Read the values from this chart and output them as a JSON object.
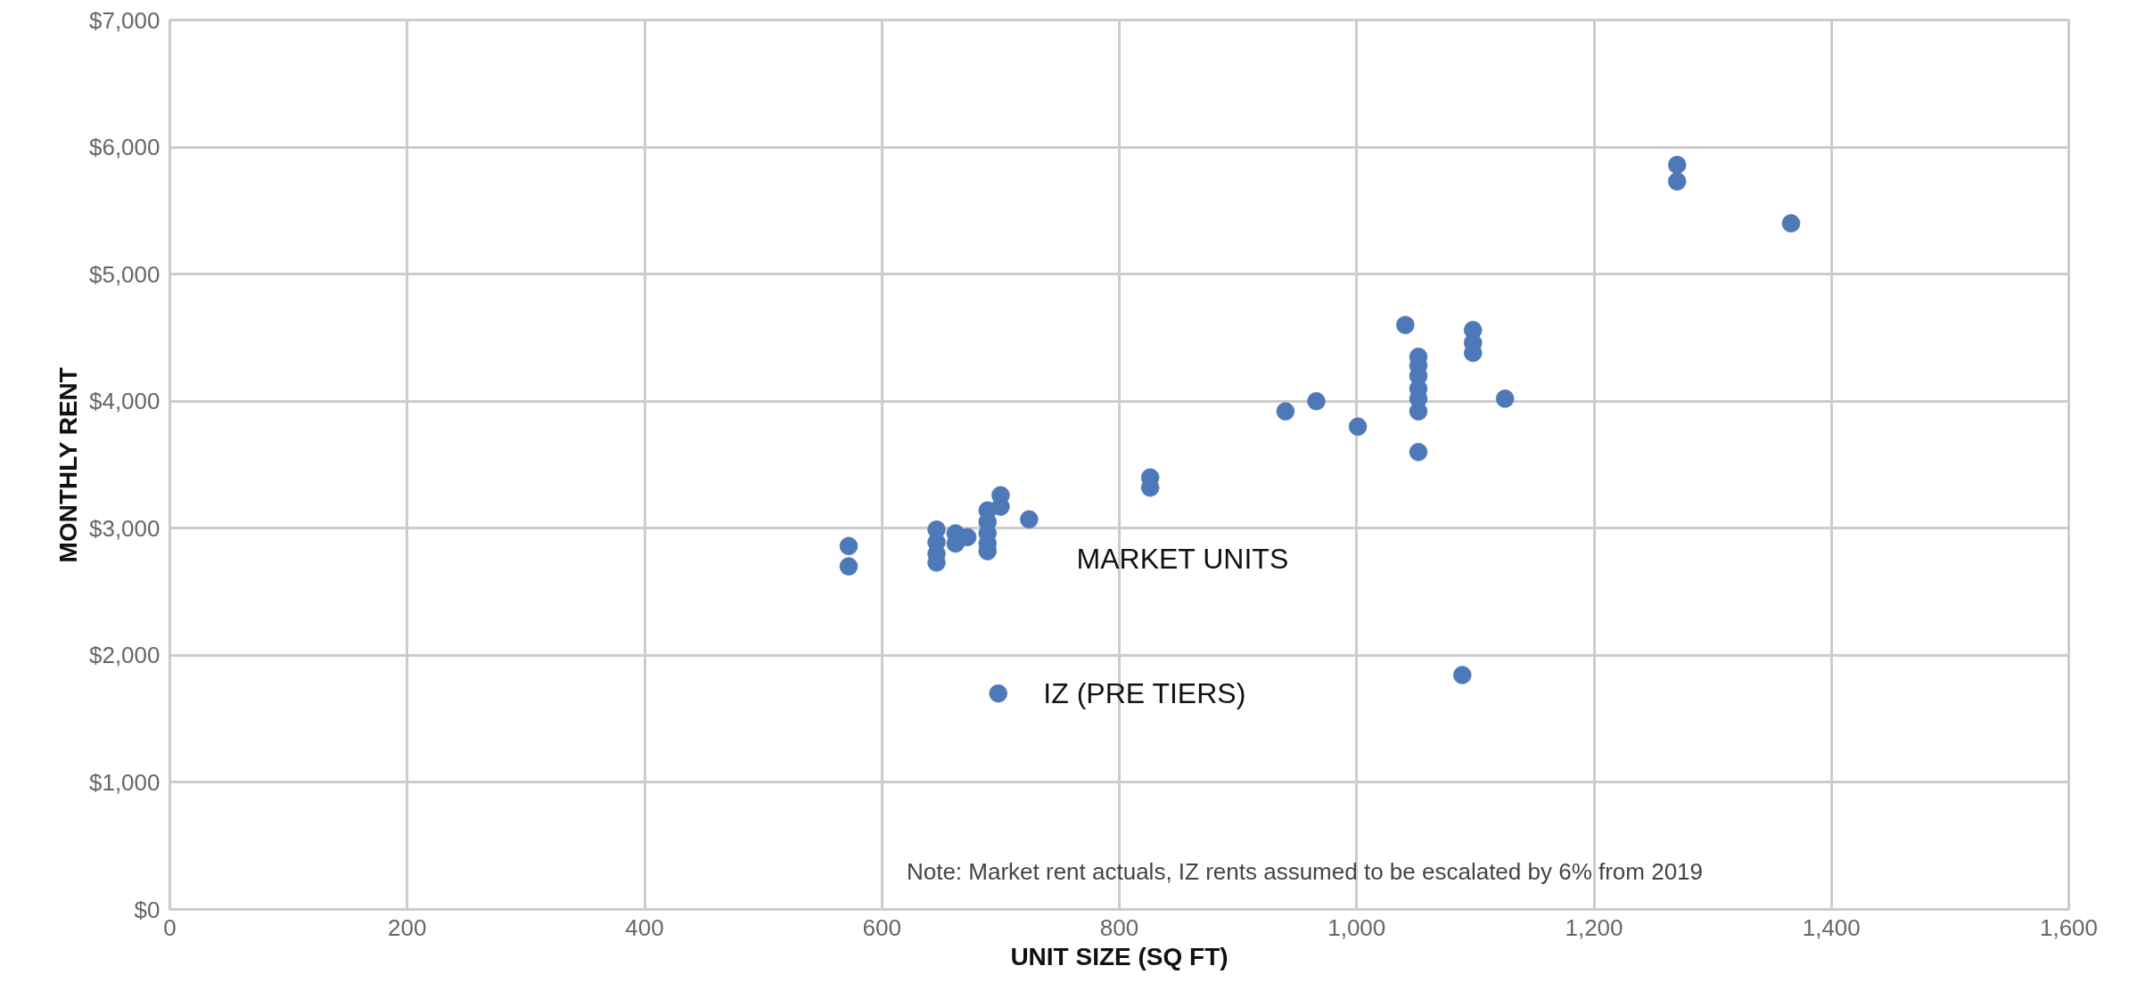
{
  "chart_data": {
    "type": "scatter",
    "xlabel": "UNIT SIZE (SQ FT)",
    "ylabel": "MONTHLY RENT",
    "xlim": [
      0,
      1600
    ],
    "xticks": [
      {
        "value": 0,
        "label": "0"
      },
      {
        "value": 200,
        "label": "200"
      },
      {
        "value": 400,
        "label": "400"
      },
      {
        "value": 600,
        "label": "600"
      },
      {
        "value": 800,
        "label": "800"
      },
      {
        "value": 1000,
        "label": "1,000"
      },
      {
        "value": 1200,
        "label": "1,200"
      },
      {
        "value": 1400,
        "label": "1,400"
      },
      {
        "value": 1600,
        "label": "1,600"
      }
    ],
    "ylim": [
      0,
      7000
    ],
    "yticks": [
      {
        "value": 0,
        "label": "$0"
      },
      {
        "value": 1000,
        "label": "$1,000"
      },
      {
        "value": 2000,
        "label": "$2,000"
      },
      {
        "value": 3000,
        "label": "$3,000"
      },
      {
        "value": 4000,
        "label": "$4,000"
      },
      {
        "value": 5000,
        "label": "$5,000"
      },
      {
        "value": 6000,
        "label": "$6,000"
      },
      {
        "value": 7000,
        "label": "$7,000"
      }
    ],
    "grid": true,
    "marker": "circle",
    "series": [
      {
        "name": "MARKET UNITS",
        "color": "#4e79b8",
        "x": [
          572,
          572,
          646,
          646,
          646,
          646,
          662,
          662,
          672,
          689,
          689,
          689,
          689,
          689,
          700,
          700,
          724,
          826,
          826,
          940,
          966,
          1001,
          1041,
          1052,
          1052,
          1052,
          1052,
          1052,
          1052,
          1052,
          1098,
          1098,
          1098,
          1125,
          1270,
          1270,
          1366
        ],
        "values": [
          2860,
          2700,
          2990,
          2890,
          2800,
          2730,
          2960,
          2880,
          2930,
          3140,
          3050,
          2960,
          2880,
          2820,
          3260,
          3170,
          3070,
          3400,
          3320,
          3920,
          4000,
          3800,
          4600,
          4350,
          4280,
          4200,
          4100,
          4020,
          3920,
          3600,
          4560,
          4460,
          4380,
          4020,
          5860,
          5730,
          5400
        ]
      },
      {
        "name": "IZ (PRE TIERS)",
        "color": "#4e79b8",
        "x": [
          1089
        ],
        "values": [
          1845
        ]
      }
    ],
    "annotations": [
      "Note: Market rent actuals, IZ rents assumed to be escalated by 6% from 2019"
    ]
  }
}
